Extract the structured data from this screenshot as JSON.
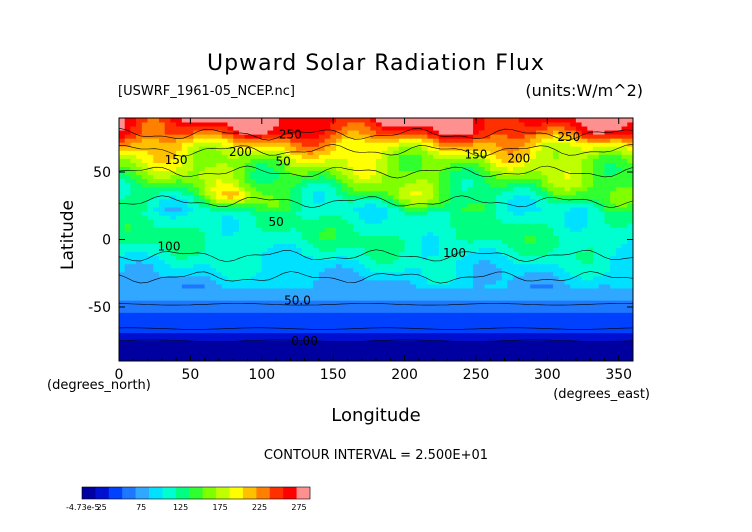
{
  "chart_data": {
    "type": "heatmap",
    "title": "Upward Solar Radiation Flux",
    "file_label": "[USWRF_1961-05_NCEP.nc]",
    "units_label": "(units:W/m^2)",
    "xlabel": "Longitude",
    "ylabel": "Latitude",
    "x_unit_label": "(degrees_east)",
    "y_unit_label": "(degrees_north)",
    "xlim": [
      0,
      360
    ],
    "ylim": [
      -90,
      90
    ],
    "x_ticks": [
      0,
      50,
      100,
      150,
      200,
      250,
      300,
      350
    ],
    "y_ticks": [
      -50,
      0,
      50
    ],
    "contour_interval_text": "CONTOUR INTERVAL = 2.500E+01",
    "colorbar": {
      "min_label": "-4.73e-5",
      "tick_labels": [
        "25",
        "75",
        "125",
        "175",
        "225",
        "275"
      ],
      "colors": [
        "#0000a0",
        "#0010d0",
        "#0040ff",
        "#1e78ff",
        "#30a8ff",
        "#00e0ff",
        "#00ffd0",
        "#00ff80",
        "#30ff30",
        "#80ff00",
        "#c0ff00",
        "#ffff00",
        "#ffc000",
        "#ff8000",
        "#ff3000",
        "#ff0000",
        "#ff9090"
      ]
    },
    "contour_labels": [
      {
        "text": "250",
        "lon": 120,
        "lat": 75
      },
      {
        "text": "200",
        "lon": 85,
        "lat": 62
      },
      {
        "text": "150",
        "lon": 40,
        "lat": 56
      },
      {
        "text": "50",
        "lon": 115,
        "lat": 55
      },
      {
        "text": "150",
        "lon": 250,
        "lat": 60
      },
      {
        "text": "200",
        "lon": 280,
        "lat": 57
      },
      {
        "text": "250",
        "lon": 315,
        "lat": 73
      },
      {
        "text": "50",
        "lon": 110,
        "lat": 10
      },
      {
        "text": "100",
        "lon": 35,
        "lat": -8
      },
      {
        "text": "100",
        "lon": 235,
        "lat": -13
      },
      {
        "text": "50.0",
        "lon": 125,
        "lat": -48
      },
      {
        "text": "0.00",
        "lon": 130,
        "lat": -78
      }
    ],
    "zonal_profile": {
      "lat": [
        -90,
        -80,
        -75,
        -65,
        -55,
        -48,
        -40,
        -30,
        -20,
        -10,
        0,
        10,
        20,
        30,
        40,
        50,
        60,
        70,
        80,
        90
      ],
      "value": [
        0,
        0,
        22,
        38,
        48,
        62,
        78,
        88,
        98,
        110,
        120,
        118,
        112,
        128,
        145,
        160,
        175,
        205,
        255,
        275
      ]
    }
  }
}
